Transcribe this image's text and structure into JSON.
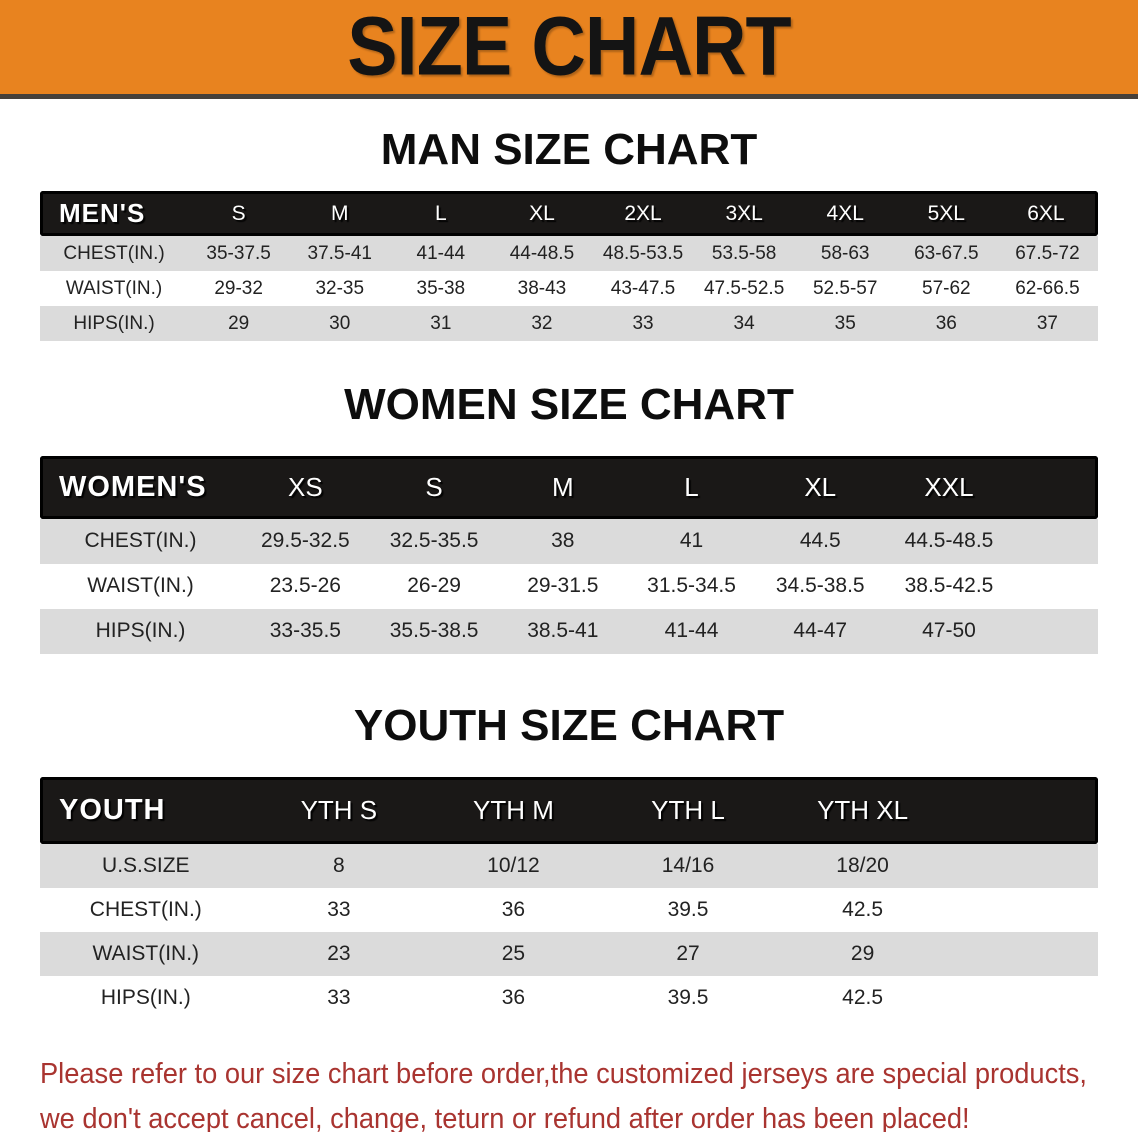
{
  "banner": {
    "title": "SIZE CHART"
  },
  "sections": [
    {
      "key": "men",
      "heading": "MAN SIZE CHART",
      "group_label": "MEN'S",
      "sizes": [
        "S",
        "M",
        "L",
        "XL",
        "2XL",
        "3XL",
        "4XL",
        "5XL",
        "6XL"
      ],
      "rows": [
        {
          "label": "CHEST(IN.)",
          "values": [
            "35-37.5",
            "37.5-41",
            "41-44",
            "44-48.5",
            "48.5-53.5",
            "53.5-58",
            "58-63",
            "63-67.5",
            "67.5-72"
          ]
        },
        {
          "label": "WAIST(IN.)",
          "values": [
            "29-32",
            "32-35",
            "35-38",
            "38-43",
            "43-47.5",
            "47.5-52.5",
            "52.5-57",
            "57-62",
            "62-66.5"
          ]
        },
        {
          "label": "HIPS(IN.)",
          "values": [
            "29",
            "30",
            "31",
            "32",
            "33",
            "34",
            "35",
            "36",
            "37"
          ]
        }
      ]
    },
    {
      "key": "women",
      "heading": "WOMEN SIZE CHART",
      "group_label": "WOMEN'S",
      "sizes": [
        "XS",
        "S",
        "M",
        "L",
        "XL",
        "XXL"
      ],
      "rows": [
        {
          "label": "CHEST(IN.)",
          "values": [
            "29.5-32.5",
            "32.5-35.5",
            "38",
            "41",
            "44.5",
            "44.5-48.5"
          ]
        },
        {
          "label": "WAIST(IN.)",
          "values": [
            "23.5-26",
            "26-29",
            "29-31.5",
            "31.5-34.5",
            "34.5-38.5",
            "38.5-42.5"
          ]
        },
        {
          "label": "HIPS(IN.)",
          "values": [
            "33-35.5",
            "35.5-38.5",
            "38.5-41",
            "41-44",
            "44-47",
            "47-50"
          ]
        }
      ]
    },
    {
      "key": "youth",
      "heading": "YOUTH SIZE CHART",
      "group_label": "YOUTH",
      "sizes": [
        "YTH S",
        "YTH M",
        "YTH L",
        "YTH XL"
      ],
      "rows": [
        {
          "label": "U.S.SIZE",
          "values": [
            "8",
            "10/12",
            "14/16",
            "18/20"
          ]
        },
        {
          "label": "CHEST(IN.)",
          "values": [
            "33",
            "36",
            "39.5",
            "42.5"
          ]
        },
        {
          "label": "WAIST(IN.)",
          "values": [
            "23",
            "25",
            "27",
            "29"
          ]
        },
        {
          "label": "HIPS(IN.)",
          "values": [
            "33",
            "36",
            "39.5",
            "42.5"
          ]
        }
      ]
    }
  ],
  "disclaimer": {
    "line1": "Please refer to our size chart before order,the customized jerseys are special products,",
    "line2": "we don't accept cancel, change, teturn or refund after order has been placed!"
  },
  "colors": {
    "banner_bg": "#E8831F",
    "header_bar_bg": "#1A1817",
    "row_stripe": "#DBDBDB",
    "disclaimer_text": "#A93430"
  }
}
